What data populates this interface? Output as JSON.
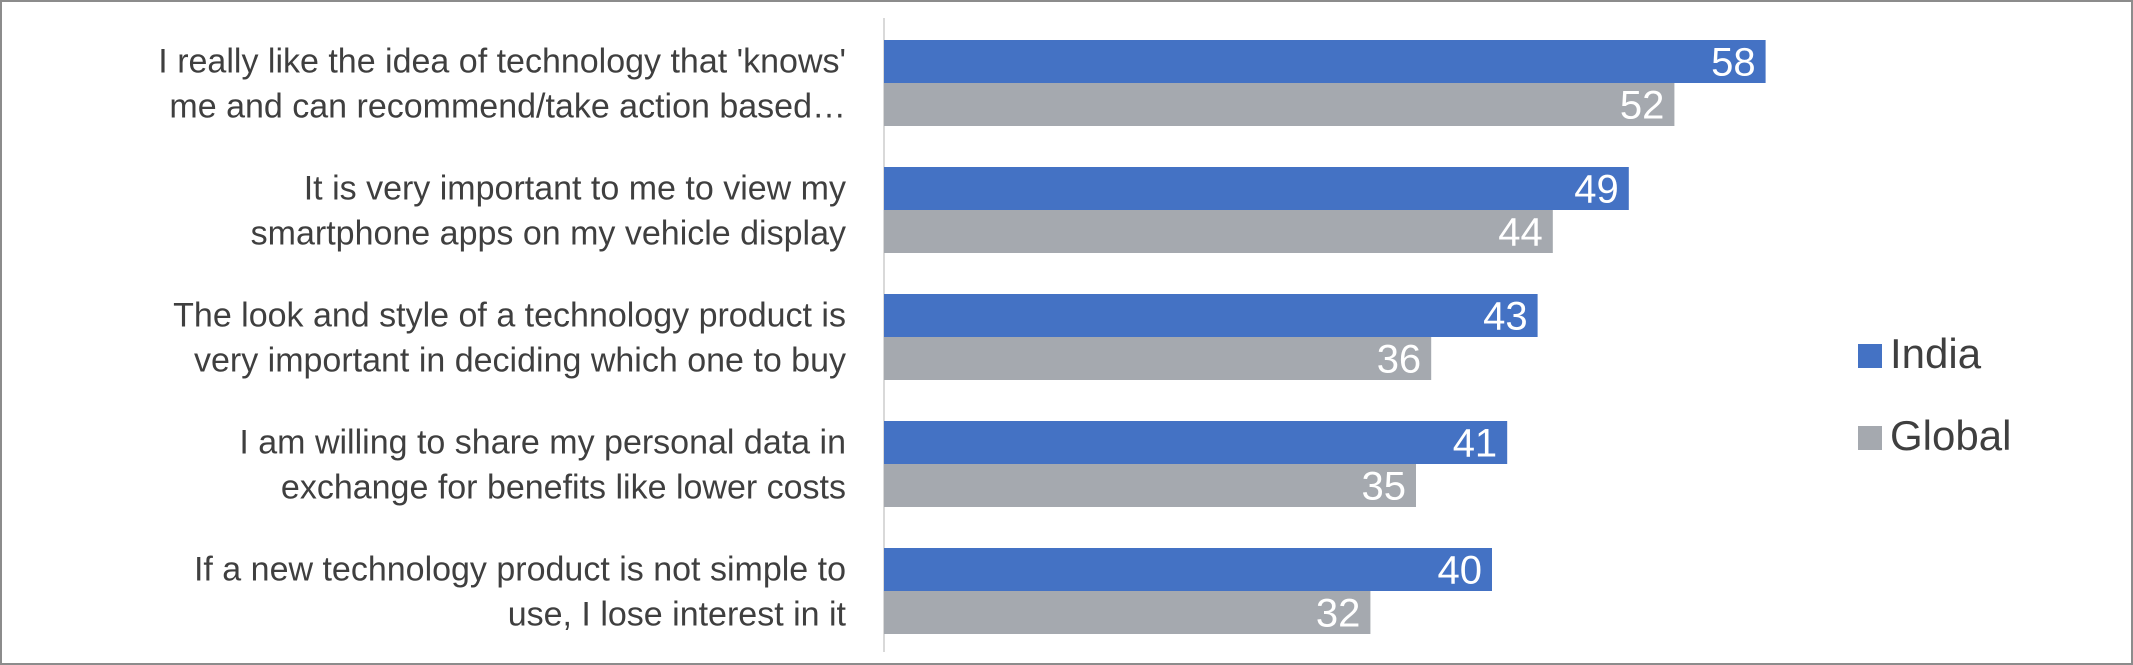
{
  "chart_data": {
    "type": "bar",
    "orientation": "horizontal",
    "categories": [
      [
        "I really like the idea of technology that 'knows'",
        "me and can recommend/take action based…"
      ],
      [
        "It is very important to me to view my",
        "smartphone apps on my vehicle display"
      ],
      [
        "The look and style of a technology product is",
        "very important in deciding which one to buy"
      ],
      [
        "I am willing to share my personal data in",
        "exchange for benefits like lower costs"
      ],
      [
        "If a new technology product is not simple to",
        "use, I lose interest in it"
      ]
    ],
    "series": [
      {
        "name": "India",
        "color": "#4472c4",
        "values": [
          58,
          49,
          43,
          41,
          40
        ]
      },
      {
        "name": "Global",
        "color": "#a5a9af",
        "values": [
          52,
          44,
          36,
          35,
          32
        ]
      }
    ],
    "xlim": [
      0,
      100
    ],
    "grid": false,
    "data_labels": true,
    "legend": {
      "position": "right"
    }
  }
}
